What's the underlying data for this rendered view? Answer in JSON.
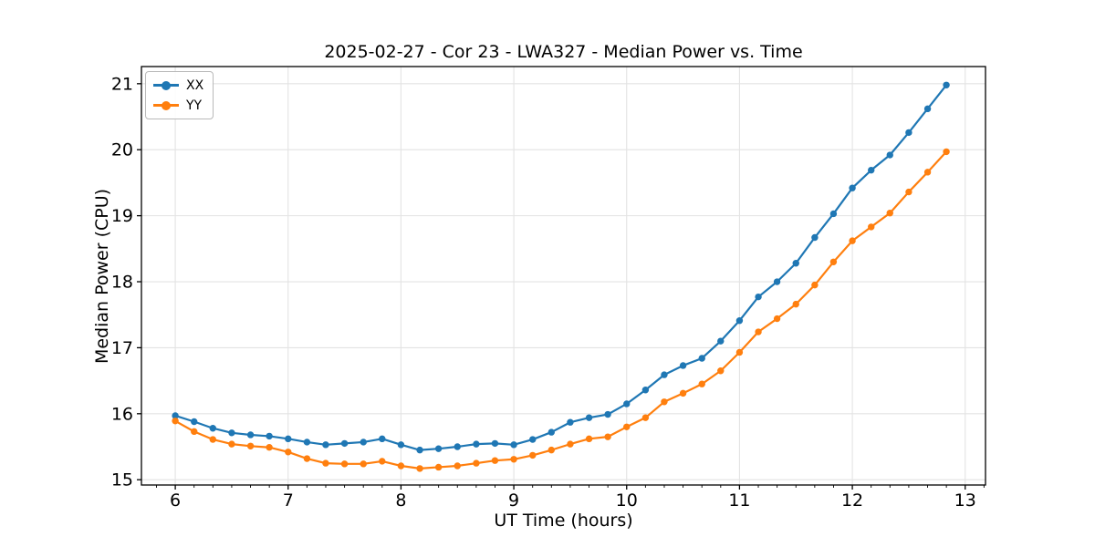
{
  "figure": {
    "title": "2025-02-27 - Cor 23 - LWA327 - Median Power vs. Time",
    "xlabel": "UT Time (hours)",
    "ylabel": "Median Power (CPU)"
  },
  "legend": {
    "items": [
      {
        "label": "XX",
        "color": "#1f77b4"
      },
      {
        "label": "YY",
        "color": "#ff7f0e"
      }
    ]
  },
  "colors": {
    "series_blue": "#1f77b4",
    "series_orange": "#ff7f0e",
    "grid": "#e3e3e3",
    "spine": "#000000",
    "background": "#ffffff"
  },
  "chart_data": {
    "type": "line",
    "title": "2025-02-27 - Cor 23 - LWA327 - Median Power vs. Time",
    "xlabel": "UT Time (hours)",
    "ylabel": "Median Power (CPU)",
    "legend_position": "upper left",
    "grid": "major",
    "marker": "circle",
    "xlim": [
      5.7,
      13.18
    ],
    "ylim": [
      14.92,
      21.26
    ],
    "x_ticks": [
      6,
      7,
      8,
      9,
      10,
      11,
      12,
      13
    ],
    "y_ticks": [
      15,
      16,
      17,
      18,
      19,
      20,
      21
    ],
    "x_minor_step": 0.166667,
    "x": [
      6.0,
      6.167,
      6.333,
      6.5,
      6.667,
      6.833,
      7.0,
      7.167,
      7.333,
      7.5,
      7.667,
      7.833,
      8.0,
      8.167,
      8.333,
      8.5,
      8.667,
      8.833,
      9.0,
      9.167,
      9.333,
      9.5,
      9.667,
      9.833,
      10.0,
      10.167,
      10.333,
      10.5,
      10.667,
      10.833,
      11.0,
      11.167,
      11.333,
      11.5,
      11.667,
      11.833,
      12.0,
      12.167,
      12.333,
      12.5,
      12.667,
      12.833
    ],
    "series": [
      {
        "name": "XX",
        "color": "#1f77b4",
        "values": [
          15.97,
          15.88,
          15.78,
          15.71,
          15.68,
          15.66,
          15.62,
          15.57,
          15.53,
          15.55,
          15.57,
          15.62,
          15.53,
          15.45,
          15.47,
          15.5,
          15.54,
          15.55,
          15.53,
          15.61,
          15.72,
          15.87,
          15.94,
          15.99,
          16.15,
          16.36,
          16.59,
          16.73,
          16.84,
          17.1,
          17.41,
          17.77,
          18.0,
          18.28,
          18.67,
          19.03,
          19.42,
          19.69,
          19.92,
          20.26,
          20.62,
          20.98
        ]
      },
      {
        "name": "YY",
        "color": "#ff7f0e",
        "values": [
          15.89,
          15.73,
          15.61,
          15.54,
          15.51,
          15.49,
          15.42,
          15.32,
          15.25,
          15.24,
          15.24,
          15.28,
          15.21,
          15.17,
          15.19,
          15.21,
          15.25,
          15.29,
          15.31,
          15.37,
          15.45,
          15.54,
          15.62,
          15.65,
          15.8,
          15.94,
          16.18,
          16.31,
          16.45,
          16.65,
          16.93,
          17.24,
          17.44,
          17.66,
          17.95,
          18.3,
          18.62,
          18.83,
          19.04,
          19.36,
          19.66,
          19.97
        ]
      }
    ]
  }
}
